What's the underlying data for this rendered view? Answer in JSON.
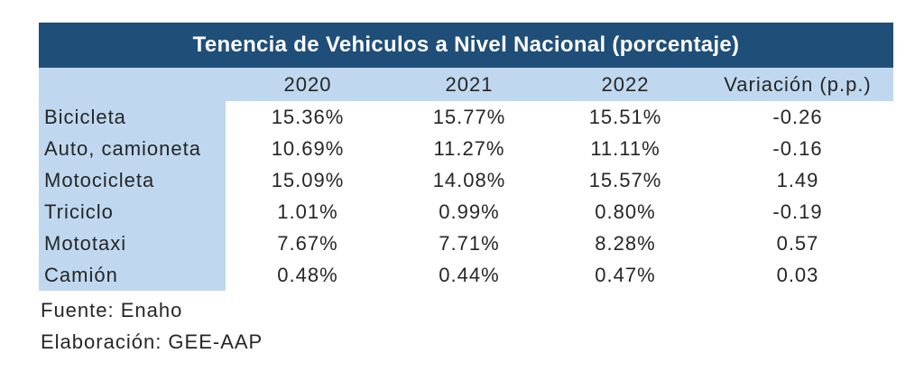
{
  "chart_data": {
    "type": "table",
    "title": "Tenencia de Vehiculos a Nivel Nacional (porcentaje)",
    "categories": [
      "2020",
      "2021",
      "2022",
      "Variación (p.p.)"
    ],
    "rows": [
      {
        "label": "Bicicleta",
        "values": [
          "15.36%",
          "15.77%",
          "15.51%",
          "-0.26"
        ]
      },
      {
        "label": "Auto, camioneta",
        "values": [
          "10.69%",
          "11.27%",
          "11.11%",
          "-0.16"
        ]
      },
      {
        "label": "Motocicleta",
        "values": [
          "15.09%",
          "14.08%",
          "15.57%",
          "1.49"
        ]
      },
      {
        "label": "Triciclo",
        "values": [
          "1.01%",
          "0.99%",
          "0.80%",
          "-0.19"
        ]
      },
      {
        "label": "Mototaxi",
        "values": [
          "7.67%",
          "7.71%",
          "8.28%",
          "0.57"
        ]
      },
      {
        "label": "Camión",
        "values": [
          "0.48%",
          "0.44%",
          "0.47%",
          "0.03"
        ]
      }
    ],
    "notes": [
      "Fuente: Enaho",
      "Elaboración: GEE-AAP"
    ],
    "layout": {
      "header_band": "top title bar + column header band",
      "grid": "off",
      "label_column_highlighted": true
    }
  },
  "colors": {
    "title_bg": "#1F4E79",
    "title_text": "#FFFFFF",
    "band_bg": "#BFD8EF",
    "body_text": "#262626",
    "data_bg": "#FFFFFF"
  }
}
